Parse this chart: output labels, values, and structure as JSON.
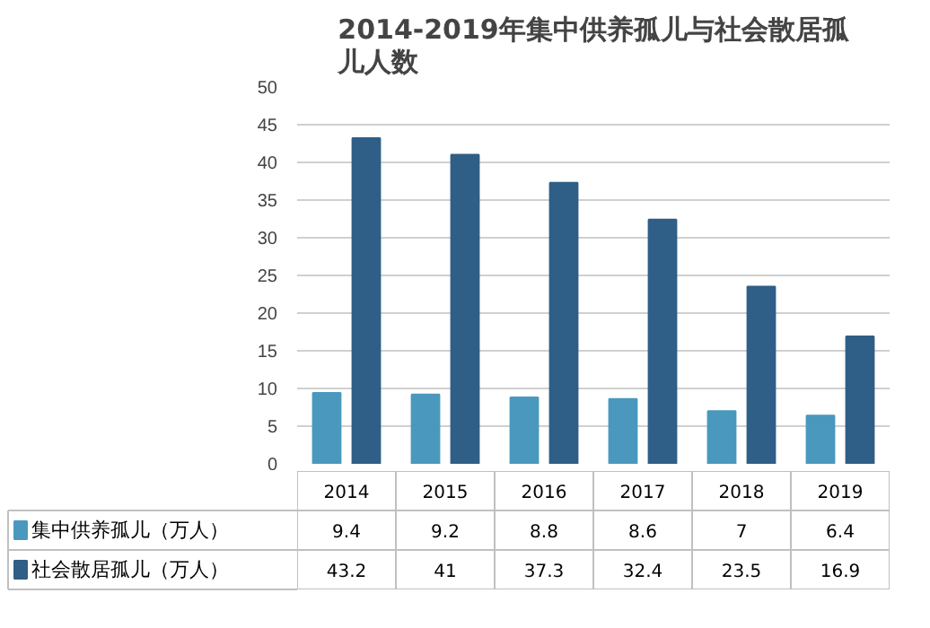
{
  "chart_data": {
    "type": "bar",
    "title": "2014-2019年集中供养孤儿与社会散居孤儿人数",
    "categories": [
      "2014",
      "2015",
      "2016",
      "2017",
      "2018",
      "2019"
    ],
    "series": [
      {
        "name": "集中供养孤儿（万人）",
        "color": "#4a98bd",
        "values": [
          9.4,
          9.2,
          8.8,
          8.6,
          7,
          6.4
        ]
      },
      {
        "name": "社会散居孤儿（万人）",
        "color": "#2f5f86",
        "values": [
          43.2,
          41,
          37.3,
          32.4,
          23.5,
          16.9
        ]
      }
    ],
    "ylim": [
      0,
      50
    ],
    "yticks": [
      0,
      5,
      10,
      15,
      20,
      25,
      30,
      35,
      40,
      45,
      50
    ],
    "grid": "y",
    "legend": "bottom",
    "data_labels": true
  }
}
